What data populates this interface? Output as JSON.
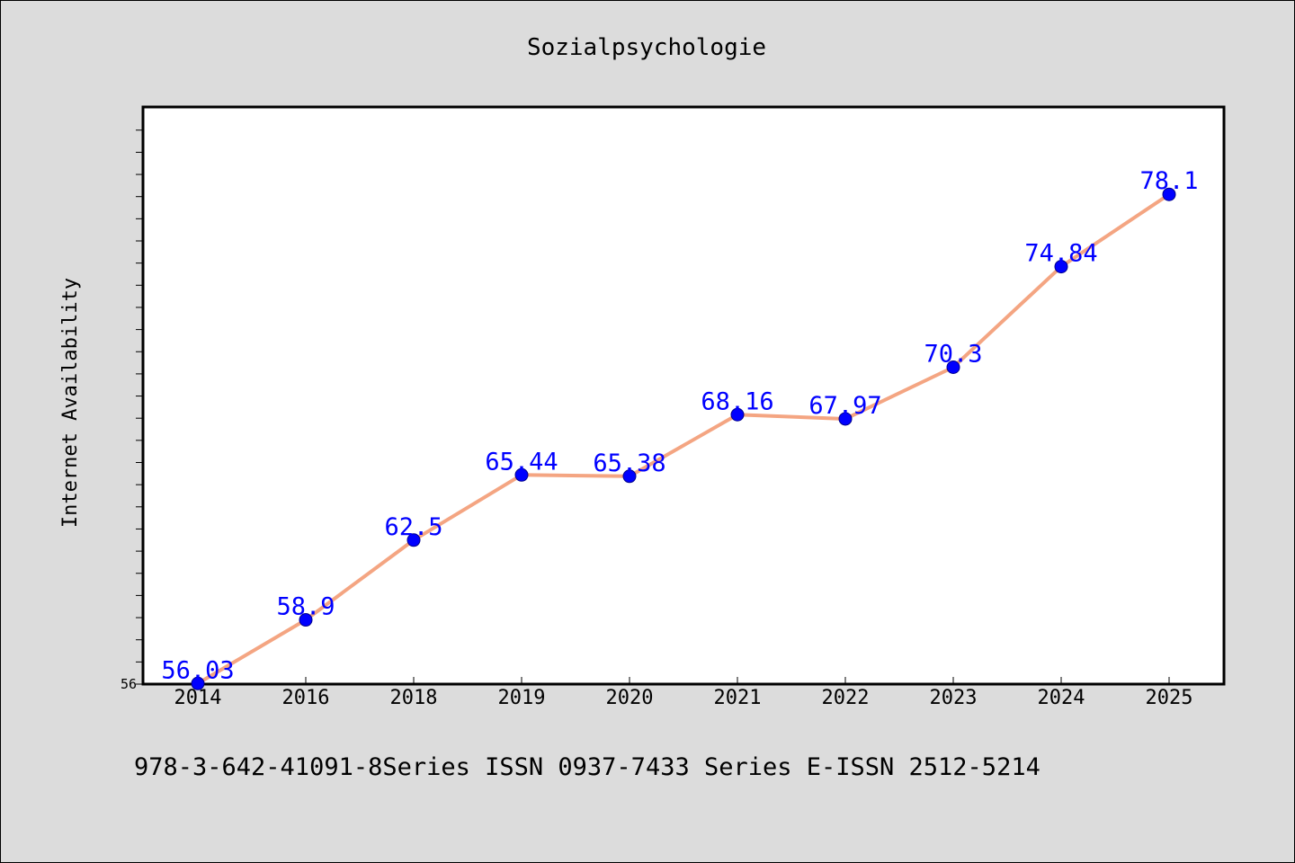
{
  "chart_data": {
    "type": "line",
    "title": "Sozialpsychologie",
    "xlabel": "",
    "ylabel": "Internet Availability",
    "categories": [
      "2014",
      "2016",
      "2018",
      "2019",
      "2020",
      "2021",
      "2022",
      "2023",
      "2024",
      "2025"
    ],
    "series": [
      {
        "values": [
          56.03,
          58.9,
          62.5,
          65.44,
          65.38,
          68.16,
          67.97,
          70.3,
          74.84,
          78.1
        ],
        "data_labels": [
          "56.03",
          "58.9",
          "62.5",
          "65.44",
          "65.38",
          "68.16",
          "67.97",
          "70.3",
          "74.84",
          "78.1"
        ],
        "line_color": "#f4a582",
        "marker_color": "#0000ff"
      }
    ],
    "ylim": [
      56,
      82
    ],
    "yticks_labeled": [
      "56"
    ],
    "grid": false,
    "legend": "none"
  },
  "footer": {
    "text": "978-3-642-41091-8Series ISSN 0937-7433 Series E-ISSN 2512-5214"
  }
}
